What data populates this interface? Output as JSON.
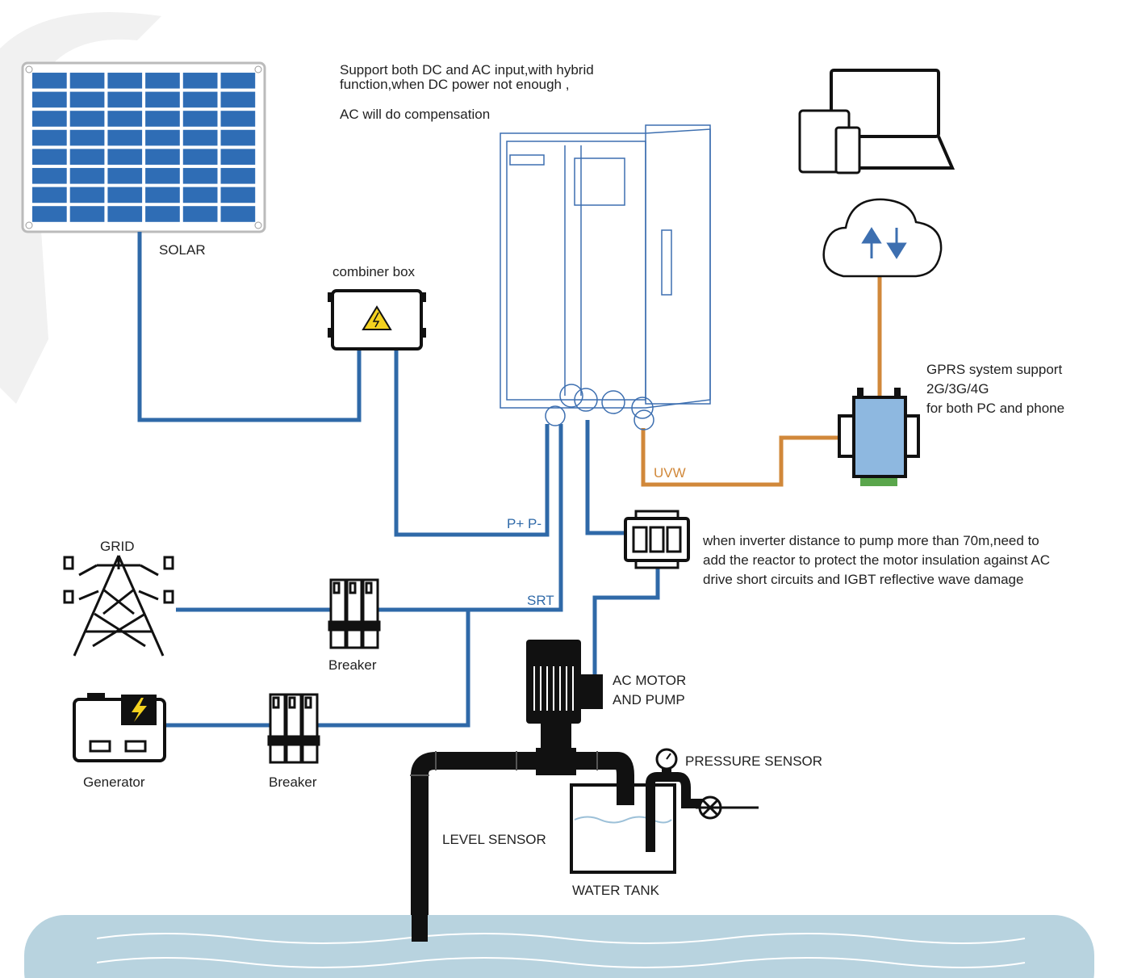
{
  "header": {
    "lines": [
      "Support both DC and AC input,with hybrid",
      "function,when DC power not enough ,",
      "AC will do compensation"
    ]
  },
  "labels": {
    "solar": "SOLAR",
    "combiner": "combiner box",
    "uvw": "UVW",
    "pp": "P+ P-",
    "srt": "SRT",
    "grid": "GRID",
    "breaker1": "Breaker",
    "breaker2": "Breaker",
    "generator": "Generator",
    "motor": [
      "AC MOTOR",
      "AND PUMP"
    ],
    "pressure": "PRESSURE SENSOR",
    "level": "LEVEL SENSOR",
    "tank": "WATER TANK"
  },
  "notes": {
    "gprs": [
      "GPRS system support",
      "2G/3G/4G",
      "for both PC and phone"
    ],
    "reactor": [
      "when inverter distance to pump more than 70m,need to",
      "add the reactor to protect the motor insulation against AC",
      "drive short circuits and IGBT reflective wave damage"
    ]
  }
}
